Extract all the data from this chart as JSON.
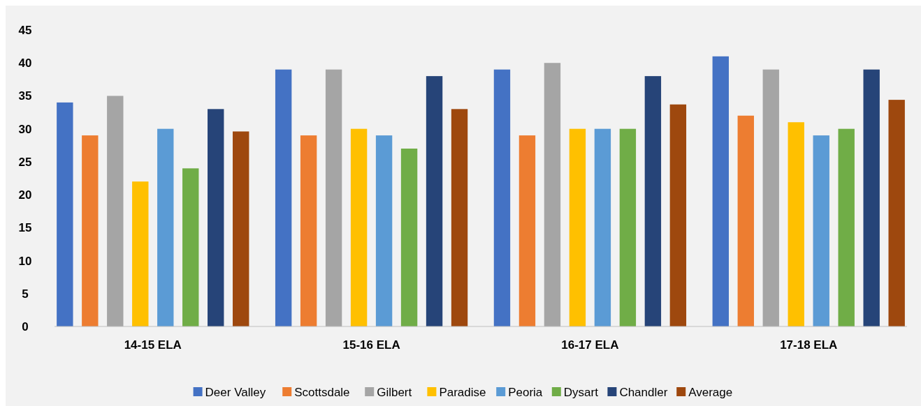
{
  "chart_data": {
    "type": "bar",
    "categories": [
      "14-15 ELA",
      "15-16 ELA",
      "16-17 ELA",
      "17-18 ELA"
    ],
    "series": [
      {
        "name": "Deer Valley",
        "color": "#4472c4",
        "values": [
          34,
          39,
          39,
          41
        ]
      },
      {
        "name": "Scottsdale",
        "color": "#ed7d31",
        "values": [
          29,
          29,
          29,
          32
        ]
      },
      {
        "name": "Gilbert",
        "color": "#a5a5a5",
        "values": [
          35,
          39,
          40,
          39
        ]
      },
      {
        "name": "Paradise",
        "color": "#ffc000",
        "values": [
          22,
          30,
          30,
          31
        ]
      },
      {
        "name": "Peoria",
        "color": "#5b9bd5",
        "values": [
          30,
          29,
          30,
          29
        ]
      },
      {
        "name": "Dysart",
        "color": "#70ad47",
        "values": [
          24,
          27,
          30,
          30
        ]
      },
      {
        "name": "Chandler",
        "color": "#264478",
        "values": [
          33,
          38,
          38,
          39
        ]
      },
      {
        "name": "Average",
        "color": "#9e480e",
        "values": [
          29.6,
          33,
          33.7,
          34.4
        ]
      }
    ],
    "ylim": [
      0,
      45
    ],
    "yticks": [
      0,
      5,
      10,
      15,
      20,
      25,
      30,
      35,
      40,
      45
    ],
    "grid": false,
    "legend": "bottom"
  }
}
